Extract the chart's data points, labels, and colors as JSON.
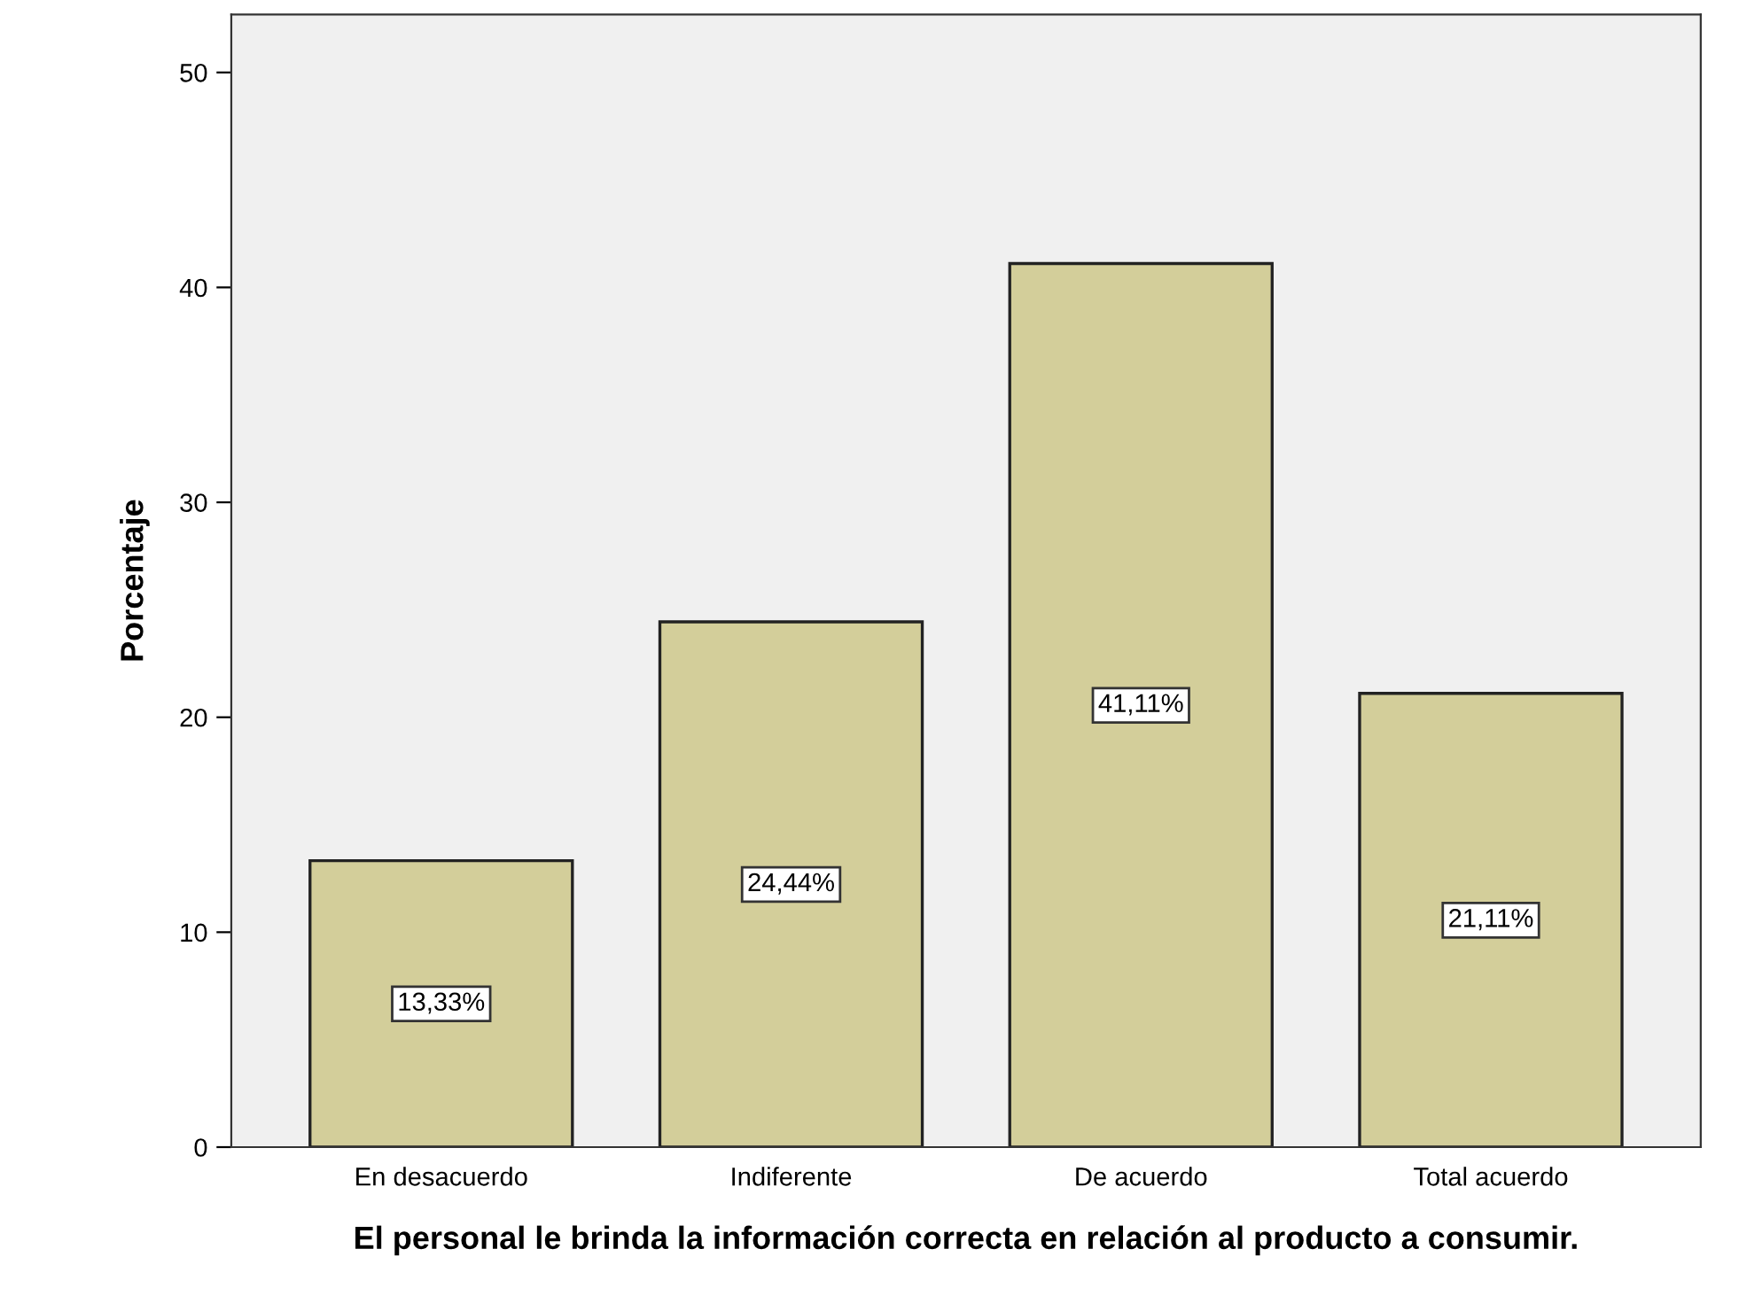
{
  "chart_data": {
    "type": "bar",
    "xlabel": "El personal le brinda la información correcta en relación al producto a consumir.",
    "ylabel": "Porcentaje",
    "categories": [
      "En desacuerdo",
      "Indiferente",
      "De acuerdo",
      "Total acuerdo"
    ],
    "values": [
      13.33,
      24.44,
      41.11,
      21.11
    ],
    "value_labels": [
      "13,33%",
      "24,44%",
      "41,11%",
      "21,11%"
    ],
    "color": "#d3ce9a",
    "ylim": [
      0,
      52.7
    ],
    "yticks": [
      0,
      10,
      20,
      30,
      40,
      50
    ],
    "grid": false,
    "legend": false
  }
}
